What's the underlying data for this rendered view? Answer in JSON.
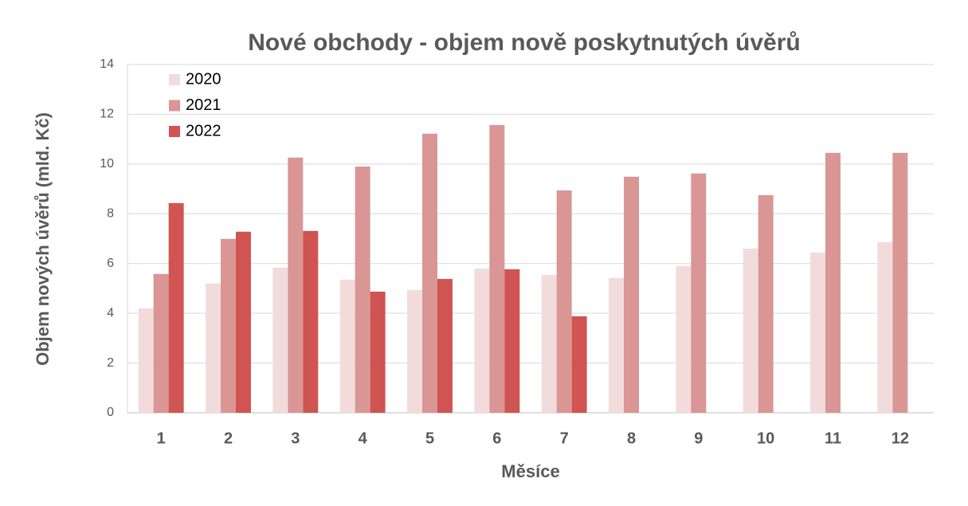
{
  "chart_data": {
    "type": "bar",
    "title": "Nové obchody - objem nově poskytnutých úvěrů",
    "x_label": "Měsíce",
    "y_label": "Objem nových úvěrů (mld. Kč)",
    "categories": [
      "1",
      "2",
      "3",
      "4",
      "5",
      "6",
      "7",
      "8",
      "9",
      "10",
      "11",
      "12"
    ],
    "series": [
      {
        "name": "2020",
        "color": "#f2dcdb",
        "values": [
          4.2,
          5.2,
          5.83,
          5.35,
          4.94,
          5.8,
          5.54,
          5.42,
          5.9,
          6.6,
          6.44,
          6.86
        ]
      },
      {
        "name": "2021",
        "color": "#d99694",
        "values": [
          5.58,
          6.99,
          10.26,
          9.9,
          11.22,
          11.57,
          8.94,
          9.49,
          9.62,
          8.75,
          10.45,
          10.45
        ]
      },
      {
        "name": "2022",
        "color": "#cf5452",
        "values": [
          8.43,
          7.28,
          7.31,
          4.87,
          5.38,
          5.77,
          3.88,
          null,
          null,
          null,
          null,
          null
        ]
      }
    ],
    "ylim": [
      0,
      14
    ],
    "yticks": [
      0,
      2,
      4,
      6,
      8,
      10,
      12,
      14
    ],
    "grid": true,
    "legend": "top-left"
  }
}
